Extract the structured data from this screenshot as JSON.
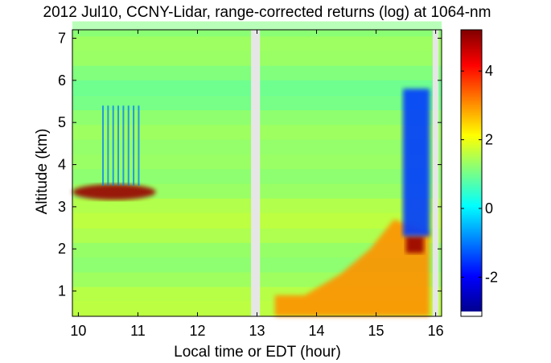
{
  "chart_data": {
    "type": "heatmap",
    "title": "2012 Jul10, CCNY-Lidar, range-corrected returns (log) at 1064-nm",
    "xlabel": "Local time or EDT (hour)",
    "ylabel": "Altitude (km)",
    "xlim": [
      9.9,
      16.1
    ],
    "ylim": [
      0.4,
      7.2
    ],
    "xticks": [
      10,
      11,
      12,
      13,
      14,
      15,
      16
    ],
    "yticks": [
      1,
      2,
      3,
      4,
      5,
      6,
      7
    ],
    "colorbar": {
      "range": [
        -3.0,
        5.2
      ],
      "ticks": [
        -2,
        0,
        2,
        4
      ],
      "colormap": "jet"
    },
    "data_gaps_hours": [
      [
        12.9,
        13.05
      ],
      [
        15.95,
        16.05
      ]
    ],
    "background_value": 1.3,
    "features": [
      {
        "kind": "aerosol_layer_top",
        "x": [
          9.9,
          11.3
        ],
        "y": [
          3.2,
          3.5
        ],
        "value": 5.0
      },
      {
        "kind": "boundary_layer",
        "x": [
          13.3,
          15.9
        ],
        "y": [
          0.4,
          2.4
        ],
        "value": 3.0
      },
      {
        "kind": "cloud_base",
        "x": [
          15.5,
          15.8
        ],
        "y": [
          1.9,
          2.3
        ],
        "value": 5.0
      },
      {
        "kind": "low_signal_region",
        "x": [
          15.45,
          15.9
        ],
        "y": [
          2.3,
          5.8
        ],
        "value": -1.5
      },
      {
        "kind": "low_signal_streaks",
        "x": [
          10.4,
          11.0
        ],
        "y": [
          3.5,
          5.4
        ],
        "value": -1.0
      }
    ]
  }
}
